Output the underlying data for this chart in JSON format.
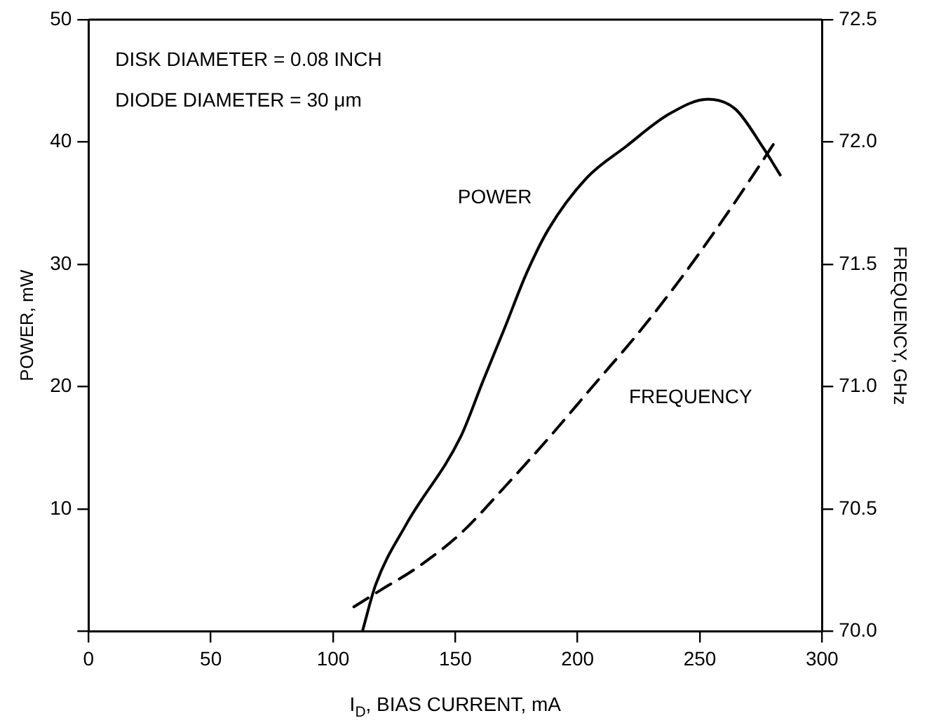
{
  "chart_data": {
    "type": "line",
    "xlabel": "I$_{D}$, BIAS CURRENT, mA",
    "ylabel": "POWER, mW",
    "y2label": "FREQUENCY, GHz",
    "annotations": [
      "DISK DIAMETER = 0.08 INCH",
      "DIODE DIAMETER = 30 μm"
    ],
    "series": [
      {
        "name": "POWER",
        "color": "#000000",
        "line_style": "solid",
        "x": [
          112,
          117.4,
          129.8,
          152.2,
          161.2,
          170.2,
          179.2,
          188.2,
          203.9,
          219.6,
          237.6,
          253.3,
          264.5,
          275.7,
          282.9
        ],
        "values": [
          0,
          3.8,
          8.7,
          15.9,
          20.4,
          24.8,
          29.3,
          32.9,
          37.1,
          39.6,
          42.3,
          43.5,
          42.7,
          39.6,
          37.3
        ]
      },
      {
        "name": "FREQUENCY",
        "color": "#000000",
        "line_style": "dashed",
        "axis": "y2",
        "x": [
          108.5,
          119.7,
          134.3,
          152.2,
          170.2,
          188.2,
          206.1,
          224.1,
          242.1,
          260,
          273.5,
          281.4
        ],
        "values": [
          70.1,
          70.17,
          70.26,
          70.4,
          70.59,
          70.79,
          71.0,
          71.21,
          71.44,
          71.69,
          71.89,
          72.01
        ]
      }
    ],
    "xlim": [
      0,
      300
    ],
    "xticks": [
      0,
      50,
      100,
      150,
      200,
      250,
      300
    ],
    "ylim": [
      0,
      50
    ],
    "yticks": [
      {
        "value": 0,
        "label": null
      },
      10,
      20,
      30,
      40,
      50
    ],
    "y2lim": [
      70,
      72.5
    ],
    "y2ticks": [
      {
        "value": 70,
        "label": "70.0"
      },
      70.5,
      {
        "value": 71,
        "label": "71.0"
      },
      71.5,
      {
        "value": 72,
        "label": "72.0"
      },
      72.5
    ],
    "grid": false,
    "legend": false,
    "marker": "none"
  }
}
